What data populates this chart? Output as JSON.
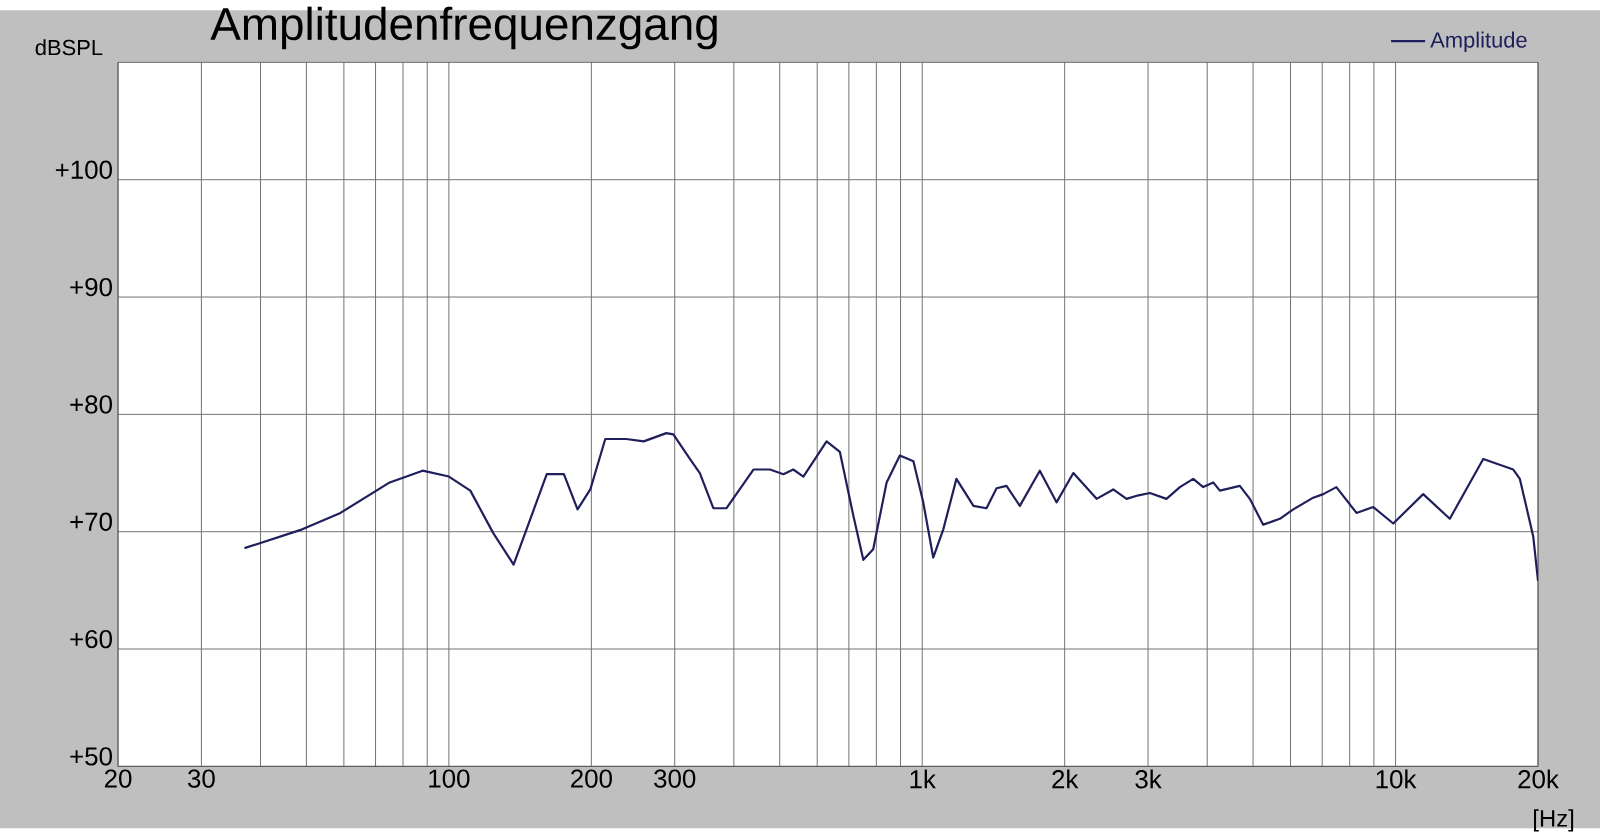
{
  "chart_data": {
    "type": "line",
    "title": "Amplitudenfrequenzgang",
    "xlabel": "[Hz]",
    "ylabel": "dBSPL",
    "log": "x",
    "grid": true,
    "legend": "top right",
    "line_style": "solid",
    "marker": "none",
    "xlim": [
      20,
      20000
    ],
    "ylim": [
      50,
      110
    ],
    "xticks": [
      20,
      30,
      {
        "value": 40,
        "label": null
      },
      {
        "value": 50,
        "label": null
      },
      {
        "value": 60,
        "label": null
      },
      {
        "value": 70,
        "label": null
      },
      {
        "value": 80,
        "label": null
      },
      {
        "value": 90,
        "label": null
      },
      100,
      200,
      300,
      {
        "value": 400,
        "label": null
      },
      {
        "value": 500,
        "label": null
      },
      {
        "value": 600,
        "label": null
      },
      {
        "value": 700,
        "label": null
      },
      {
        "value": 800,
        "label": null
      },
      {
        "value": 900,
        "label": null
      },
      {
        "value": 1000,
        "label": "1k"
      },
      {
        "value": 2000,
        "label": "2k"
      },
      {
        "value": 3000,
        "label": "3k"
      },
      {
        "value": 4000,
        "label": null
      },
      {
        "value": 5000,
        "label": null
      },
      {
        "value": 6000,
        "label": null
      },
      {
        "value": 7000,
        "label": null
      },
      {
        "value": 8000,
        "label": null
      },
      {
        "value": 9000,
        "label": null
      },
      {
        "value": 10000,
        "label": "10k"
      },
      {
        "value": 20000,
        "label": "20k"
      }
    ],
    "yticks": [
      {
        "value": 50,
        "label": "+50"
      },
      {
        "value": 60,
        "label": "+60"
      },
      {
        "value": 70,
        "label": "+70"
      },
      {
        "value": 80,
        "label": "+80"
      },
      {
        "value": 90,
        "label": "+90"
      },
      {
        "value": 100,
        "label": "+100"
      }
    ],
    "series": [
      {
        "name": "Amplitude",
        "color": "#1f1f5c",
        "x": [
          37,
          49,
          59,
          75,
          88,
          100,
          111,
          124,
          137,
          161,
          175,
          187,
          199,
          214,
          237,
          258,
          288,
          298,
          323,
          339,
          362,
          386,
          440,
          477,
          509,
          534,
          561,
          628,
          670,
          715,
          751,
          788,
          841,
          897,
          958,
          1005,
          1055,
          1108,
          1181,
          1283,
          1367,
          1436,
          1507,
          1608,
          1772,
          1922,
          2086,
          2336,
          2533,
          2702,
          2864,
          3027,
          3281,
          3503,
          3738,
          3924,
          4120,
          4254,
          4688,
          4922,
          5252,
          5696,
          6080,
          6700,
          7036,
          7500,
          8270,
          8972,
          9890,
          11440,
          13020,
          15320,
          17730,
          18310,
          19540,
          20000
        ],
        "values": [
          68.6,
          70.2,
          71.6,
          74.2,
          75.2,
          74.7,
          73.5,
          69.9,
          67.2,
          74.9,
          74.9,
          71.9,
          73.6,
          77.9,
          77.9,
          77.7,
          78.4,
          78.3,
          76.2,
          75.0,
          72.0,
          72.0,
          75.3,
          75.3,
          74.9,
          75.3,
          74.7,
          77.7,
          76.8,
          71.4,
          67.6,
          68.5,
          74.2,
          76.5,
          76.0,
          72.5,
          67.8,
          70.2,
          74.5,
          72.2,
          72.0,
          73.7,
          73.9,
          72.2,
          75.2,
          72.5,
          75.0,
          72.8,
          73.6,
          72.8,
          73.1,
          73.3,
          72.8,
          73.8,
          74.5,
          73.8,
          74.2,
          73.5,
          73.9,
          72.8,
          70.6,
          71.1,
          71.9,
          72.9,
          73.2,
          73.8,
          71.6,
          72.1,
          70.7,
          73.2,
          71.1,
          76.2,
          75.3,
          74.5,
          69.6,
          65.8
        ]
      }
    ]
  }
}
